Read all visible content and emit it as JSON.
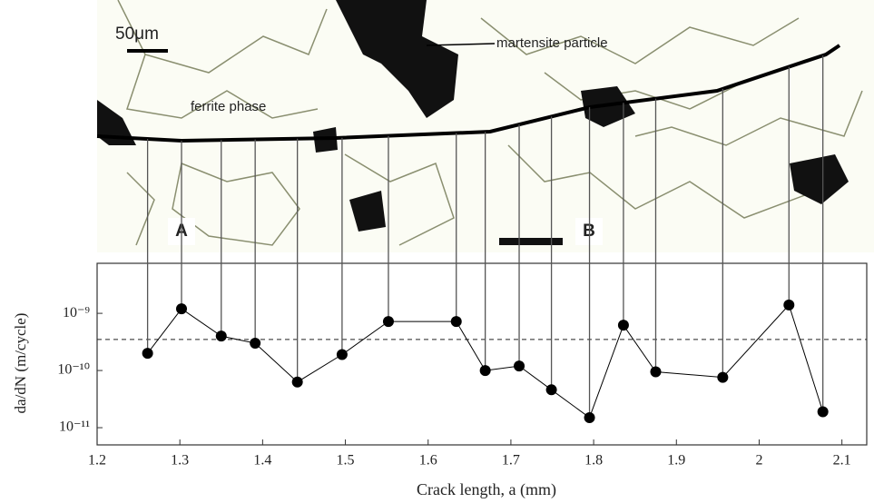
{
  "chart_data": {
    "type": "line",
    "x_label": "Crack length, a (mm)",
    "y_label": "da/dN (m/cycle)",
    "annotations": [
      "50μm",
      "martensite particle",
      "ferrite phase",
      "A",
      "B"
    ],
    "x": [
      1.261,
      1.302,
      1.35,
      1.391,
      1.442,
      1.496,
      1.552,
      1.634,
      1.669,
      1.71,
      1.749,
      1.795,
      1.836,
      1.875,
      1.956,
      2.036,
      2.077
    ],
    "series": [
      {
        "color": "#000000",
        "values": [
          2e-10,
          1.2e-09,
          4e-10,
          3e-10,
          6.3e-11,
          1.9e-10,
          7.2e-10,
          7.2e-10,
          1e-10,
          1.2e-10,
          4.6e-11,
          1.5e-11,
          6.2e-10,
          9.5e-11,
          7.6e-11,
          1.4e-09,
          1.9e-11
        ]
      }
    ],
    "reference_line": 3.5e-10,
    "xlim": [
      1.2,
      2.13
    ],
    "xticks": [
      1.2,
      1.3,
      1.4,
      1.5,
      1.6,
      1.7,
      1.8,
      1.9,
      {
        "value": 2.0,
        "label": "2"
      },
      2.1
    ],
    "ylim": [
      5e-12,
      7.5e-09
    ],
    "yscale": "log",
    "yticks": [
      {
        "value": 1e-09,
        "label": "10⁻⁹"
      },
      {
        "value": 1e-10,
        "label": "10⁻¹⁰"
      },
      {
        "value": 1e-11,
        "label": "10⁻¹¹"
      }
    ]
  }
}
